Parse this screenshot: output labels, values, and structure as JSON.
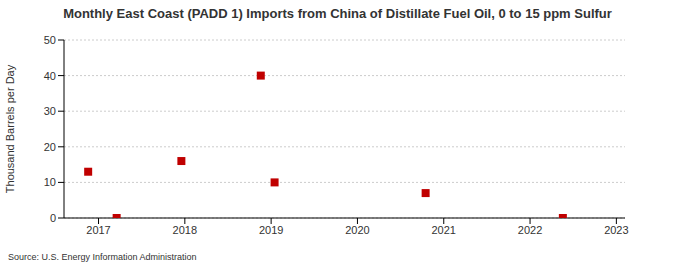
{
  "chart_data": {
    "type": "scatter",
    "title": "Monthly East Coast (PADD 1) Imports from China of Distillate Fuel Oil, 0 to 15 ppm Sulfur",
    "y_label": "Thousand Barrels per Day",
    "annotations": [
      "Source: U.S. Energy Information Administration"
    ],
    "x": [
      2016.88,
      2017.21,
      2017.96,
      2018.88,
      2019.04,
      2020.79,
      2022.38
    ],
    "values": [
      13,
      0,
      16,
      40,
      10,
      7,
      0
    ],
    "color": "#c00000",
    "marker": "square",
    "xlim": [
      2016.6,
      2023.1
    ],
    "xticks": [
      2017,
      2018,
      2019,
      2020,
      2021,
      2022,
      2023
    ],
    "ylim": [
      0,
      50
    ],
    "yticks": [
      0,
      10,
      20,
      30,
      40,
      50
    ],
    "grid": true
  }
}
